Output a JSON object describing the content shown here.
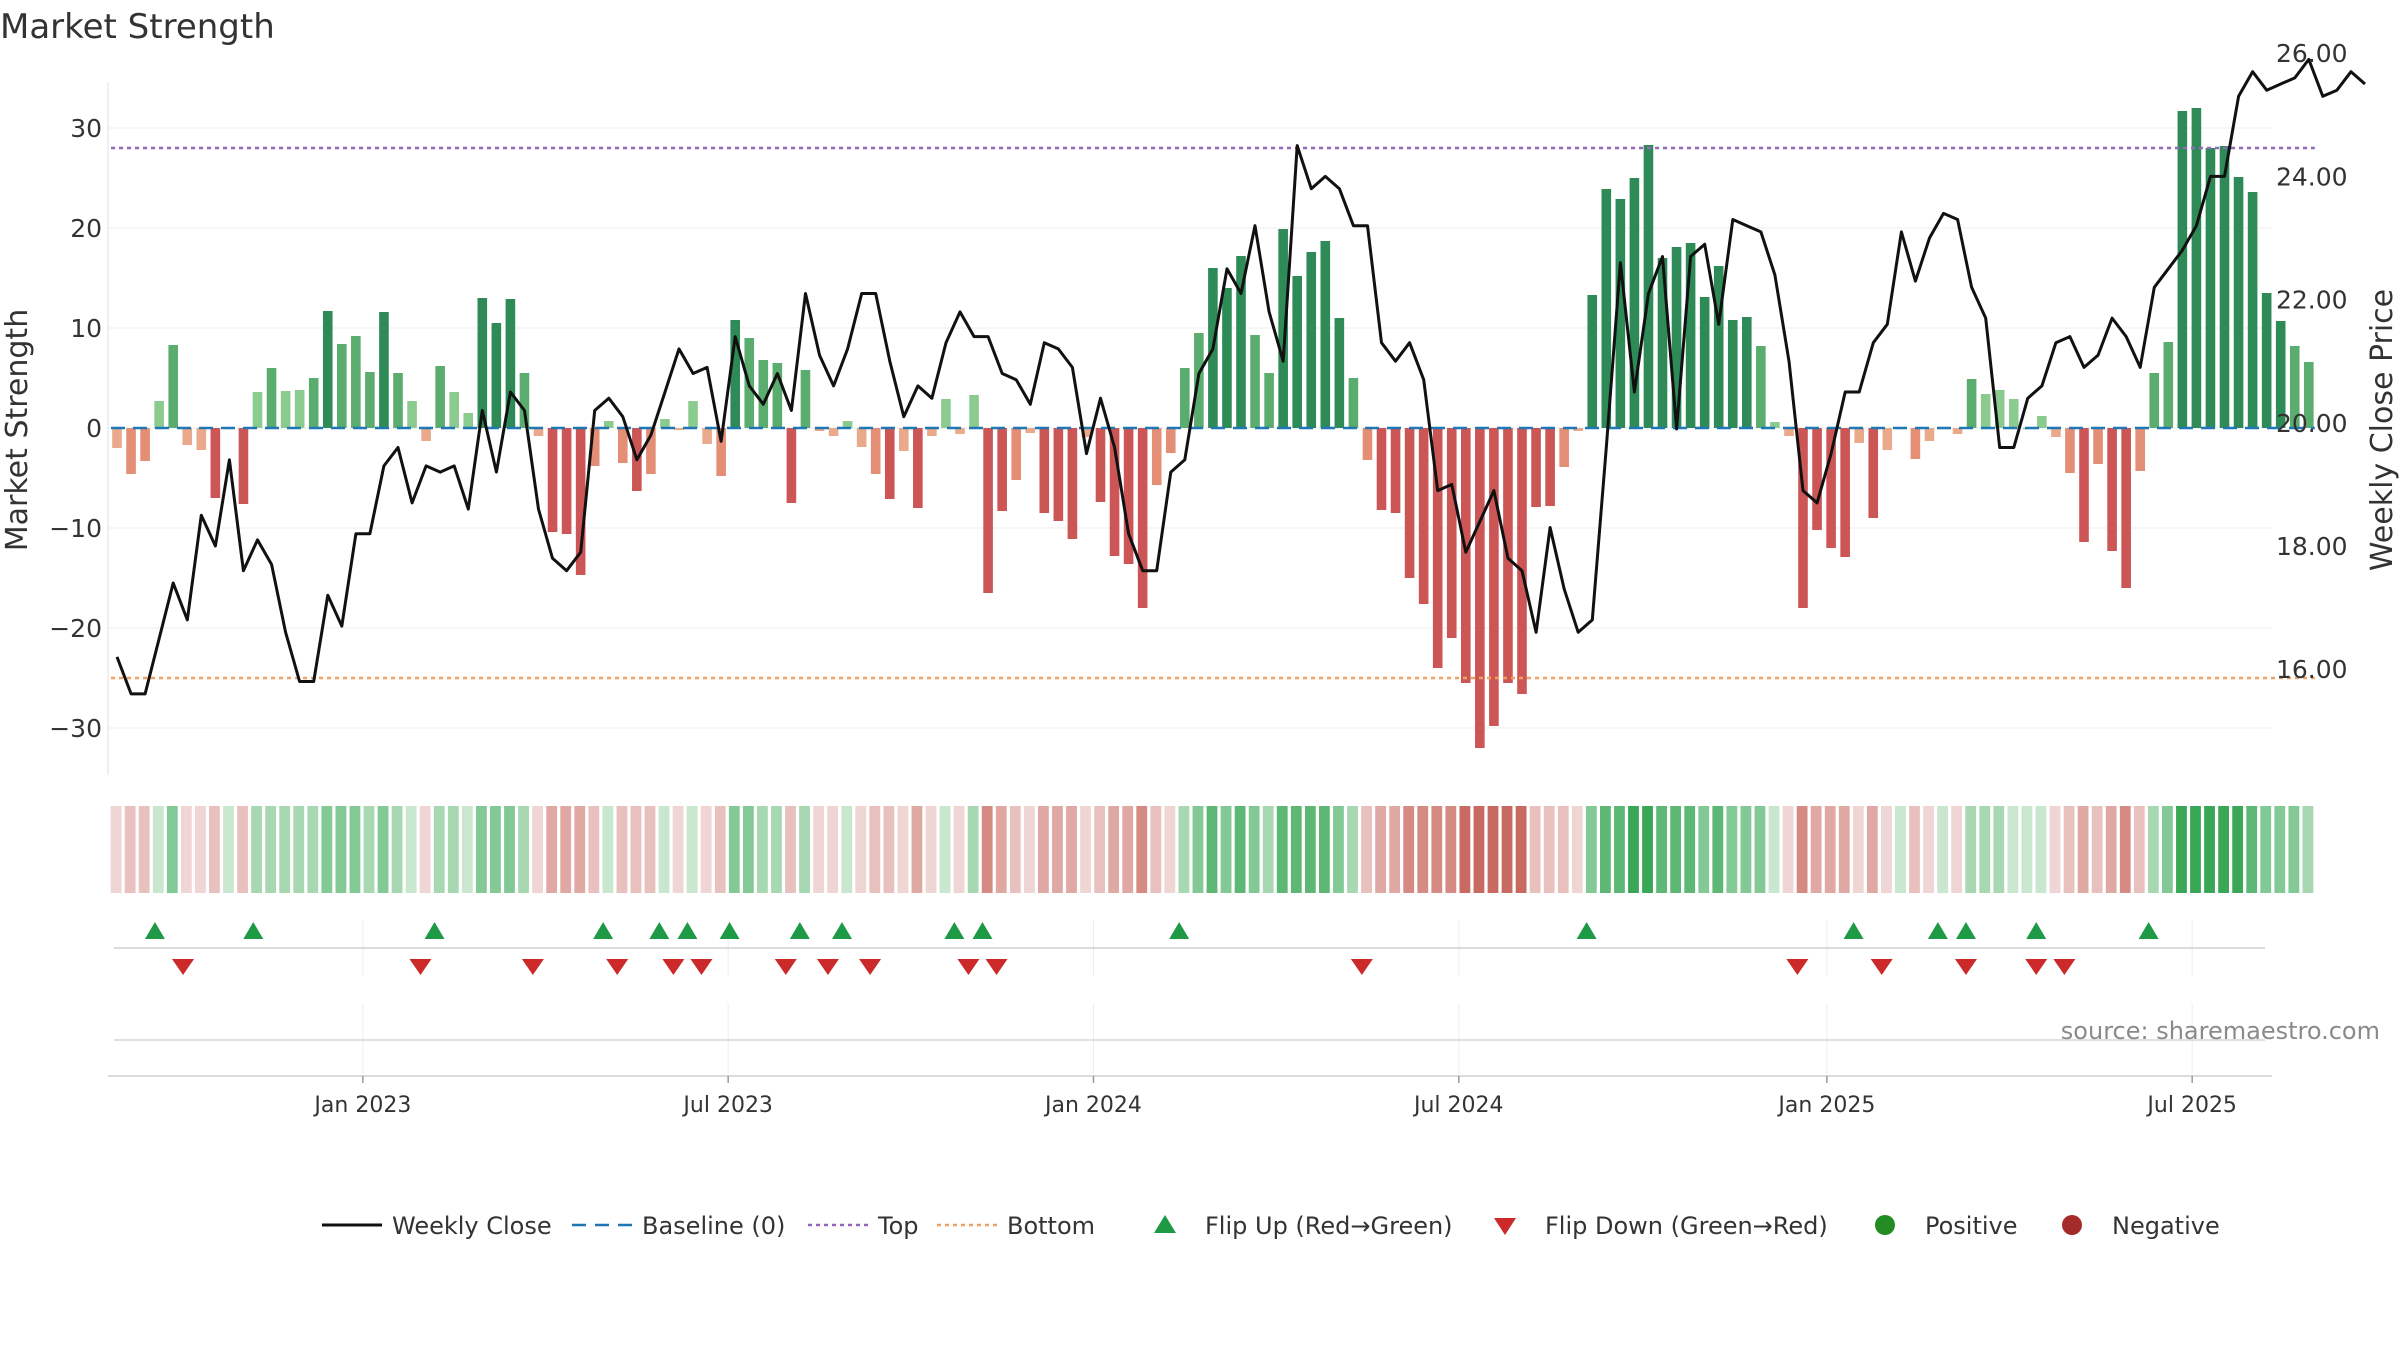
{
  "chart_data": {
    "type": "bar",
    "title": "Market Strength",
    "ylabel": "Market Strength",
    "y2label": "Weekly Close Price",
    "ylim": [
      -35,
      35
    ],
    "y2lim": [
      15.2,
      26.4
    ],
    "yticks": [
      -30,
      -20,
      -10,
      0,
      10,
      20,
      30
    ],
    "y2ticks": [
      "16.00",
      "18.00",
      "20.00",
      "22.00",
      "24.00",
      "26.00"
    ],
    "top_level": 28,
    "bottom_level": -25,
    "x_date_ticks": [
      {
        "label": "Jan 2023",
        "week": 17.5
      },
      {
        "label": "Jul 2023",
        "week": 43.5
      },
      {
        "label": "Jan 2024",
        "week": 69.5
      },
      {
        "label": "Jul 2024",
        "week": 95.5
      },
      {
        "label": "Jan 2025",
        "week": 121.7
      },
      {
        "label": "Jul 2025",
        "week": 147.7
      }
    ],
    "strength": [
      -2,
      -4.6,
      -3.3,
      2.7,
      8.3,
      -1.7,
      -2.2,
      -7,
      0,
      -7.6,
      3.6,
      6,
      3.7,
      3.8,
      5,
      11.7,
      8.4,
      9.2,
      5.6,
      11.6,
      5.5,
      2.7,
      -1.3,
      6.2,
      3.6,
      1.5,
      13,
      10.5,
      12.9,
      5.5,
      -0.8,
      -10.4,
      -10.6,
      -14.7,
      -3.8,
      0.7,
      -3.5,
      -6.3,
      -4.6,
      0.9,
      -0.2,
      2.7,
      -1.6,
      -4.8,
      10.8,
      9,
      6.8,
      6.5,
      -7.5,
      5.8,
      -0.3,
      -0.8,
      0.7,
      -1.9,
      -4.6,
      -7.1,
      -2.3,
      -8,
      -0.8,
      2.9,
      -0.6,
      3.3,
      -16.5,
      -8.3,
      -5.2,
      -0.5,
      -8.5,
      -9.3,
      -11.1,
      -0.9,
      -7.4,
      -12.8,
      -13.6,
      -18,
      -5.7,
      -2.5,
      6,
      9.5,
      16,
      14,
      17.2,
      9.3,
      5.5,
      19.9,
      15.2,
      17.6,
      18.7,
      11,
      5,
      -3.2,
      -8.2,
      -8.5,
      -15,
      -17.6,
      -24,
      -21,
      -25.5,
      -32,
      -29.8,
      -25.5,
      -26.6,
      -7.9,
      -7.8,
      -3.9,
      -0.3,
      13.3,
      23.9,
      22.9,
      25,
      28.3,
      17,
      18.1,
      18.5,
      13.1,
      16.2,
      10.8,
      11.1,
      8.2,
      0.6,
      -0.8,
      -18,
      -10.2,
      -12,
      -12.9,
      -1.5,
      -9,
      -2.2,
      0,
      -3.1,
      -1.3,
      0,
      -0.6,
      4.9,
      3.4,
      3.8,
      2.9,
      0,
      1.2,
      -0.9,
      -4.5,
      -11.4,
      -3.6,
      -12.3,
      -16,
      -4.3,
      5.5,
      8.6,
      31.7,
      32,
      28,
      28.2,
      25.1,
      23.6,
      13.5,
      10.7,
      8.2,
      6.6
    ],
    "close": [
      16.2,
      15.6,
      15.6,
      16.5,
      17.4,
      16.8,
      18.5,
      18,
      19.4,
      17.6,
      18.1,
      17.7,
      16.6,
      15.8,
      15.8,
      17.2,
      16.7,
      18.2,
      18.2,
      19.3,
      19.6,
      18.7,
      19.3,
      19.2,
      19.3,
      18.6,
      20.2,
      19.2,
      20.5,
      20.2,
      18.6,
      17.8,
      17.6,
      17.9,
      20.2,
      20.4,
      20.1,
      19.4,
      19.8,
      20.5,
      21.2,
      20.8,
      20.9,
      19.7,
      21.4,
      20.6,
      20.3,
      20.8,
      20.2,
      22.1,
      21.1,
      20.6,
      21.2,
      22.1,
      22.1,
      21,
      20.1,
      20.6,
      20.4,
      21.3,
      21.8,
      21.4,
      21.4,
      20.8,
      20.7,
      20.3,
      21.3,
      21.2,
      20.9,
      19.5,
      20.4,
      19.6,
      18.2,
      17.6,
      17.6,
      19.2,
      19.4,
      20.8,
      21.2,
      22.5,
      22.1,
      23.2,
      21.8,
      21,
      24.5,
      23.8,
      24,
      23.8,
      23.2,
      23.2,
      21.3,
      21,
      21.3,
      20.7,
      18.9,
      19,
      17.9,
      18.4,
      18.9,
      17.8,
      17.6,
      16.6,
      18.3,
      17.3,
      16.6,
      16.8,
      19.6,
      22.6,
      20.5,
      22.1,
      22.7,
      19.9,
      22.7,
      22.9,
      21.6,
      23.3,
      23.2,
      23.1,
      22.4,
      21,
      18.9,
      18.7,
      19.5,
      20.5,
      20.5,
      21.3,
      21.6,
      23.1,
      22.3,
      23,
      23.4,
      23.3,
      22.2,
      21.7,
      19.6,
      19.6,
      20.4,
      20.6,
      21.3,
      21.4,
      20.9,
      21.1,
      21.7,
      21.4,
      20.9,
      22.2,
      22.5,
      22.8,
      23.2,
      24,
      24,
      25.3,
      25.7,
      25.4,
      25.5,
      25.6,
      25.9,
      25.3,
      25.4,
      25.7,
      25.5
    ],
    "up_flips": [
      2.7,
      9.7,
      22.6,
      34.6,
      38.6,
      40.6,
      43.6,
      48.6,
      51.6,
      59.6,
      61.6,
      75.6,
      104.6,
      123.6,
      129.6,
      131.6,
      136.6,
      144.6
    ],
    "down_flips": [
      4.7,
      21.6,
      29.6,
      35.6,
      39.6,
      41.6,
      47.6,
      50.6,
      53.6,
      60.6,
      62.6,
      88.6,
      119.6,
      125.6,
      131.6,
      136.6,
      138.6
    ],
    "source_note": "source: sharemaestro.com",
    "legend": [
      {
        "label": "Weekly Close",
        "kind": "line",
        "color": "#111111"
      },
      {
        "label": "Baseline (0)",
        "kind": "dash",
        "color": "#1f77b4"
      },
      {
        "label": "Top",
        "kind": "dot",
        "color": "#9467bd"
      },
      {
        "label": "Bottom",
        "kind": "dot",
        "color": "#f0a060"
      },
      {
        "label": "Flip Up (Red→Green)",
        "kind": "tri-up",
        "color": "#1e9a46"
      },
      {
        "label": "Flip Down (Green→Red)",
        "kind": "tri-down",
        "color": "#cc2a2a"
      },
      {
        "label": "Positive",
        "kind": "dot-circle",
        "color": "#228b22"
      },
      {
        "label": "Negative",
        "kind": "dot-circle",
        "color": "#a52a2a"
      }
    ]
  }
}
